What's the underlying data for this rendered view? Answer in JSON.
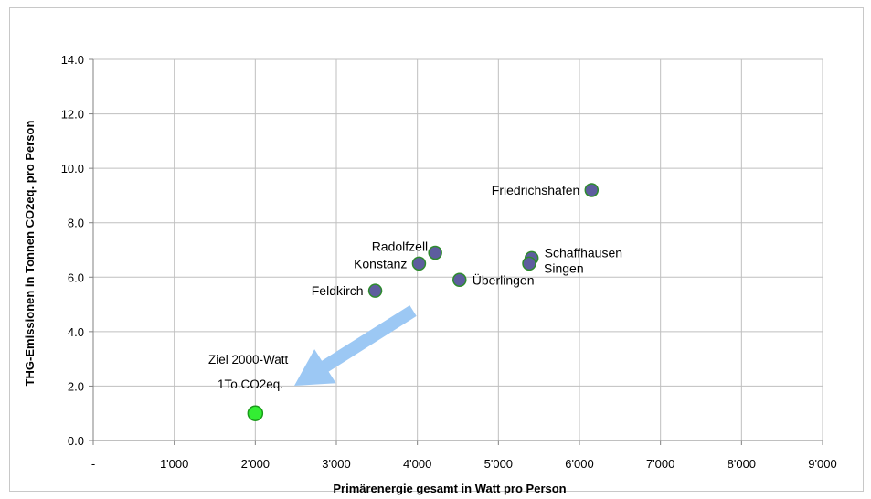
{
  "chart_data": {
    "type": "scatter",
    "title": "",
    "xlabel": "Primärenergie gesamt in Watt pro Person",
    "ylabel": "THG-Emissionen in Tonnen CO2eq. pro Person",
    "xlim": [
      0,
      9000
    ],
    "ylim": [
      0,
      14
    ],
    "x_ticks": [
      0,
      1000,
      2000,
      3000,
      4000,
      5000,
      6000,
      7000,
      8000,
      9000
    ],
    "x_tick_labels": [
      "-",
      "1'000",
      "2'000",
      "3'000",
      "4'000",
      "5'000",
      "6'000",
      "7'000",
      "8'000",
      "9'000"
    ],
    "y_ticks": [
      0,
      2,
      4,
      6,
      8,
      10,
      12,
      14
    ],
    "y_tick_labels": [
      "0.0",
      "2.0",
      "4.0",
      "6.0",
      "8.0",
      "10.0",
      "12.0",
      "14.0"
    ],
    "grid": true,
    "legend": "none",
    "points": [
      {
        "name": "Friedrichshafen",
        "x": 6150,
        "y": 9.2,
        "label_pos": "left"
      },
      {
        "name": "Radolfzell",
        "x": 4220,
        "y": 6.9,
        "label_pos": "left-up"
      },
      {
        "name": "Konstanz",
        "x": 4020,
        "y": 6.5,
        "label_pos": "left"
      },
      {
        "name": "Schaffhausen",
        "x": 5410,
        "y": 6.7,
        "label_pos": "right-up"
      },
      {
        "name": "Singen",
        "x": 5380,
        "y": 6.5,
        "label_pos": "right-down"
      },
      {
        "name": "Überlingen",
        "x": 4520,
        "y": 5.9,
        "label_pos": "right"
      },
      {
        "name": "Feldkirch",
        "x": 3480,
        "y": 5.5,
        "label_pos": "left"
      }
    ],
    "target_point": {
      "x": 2000,
      "y": 1.0
    },
    "annotation": {
      "line1": "Ziel 2000-Watt",
      "line2": "1To.CO2eq."
    },
    "colors": {
      "point_fill": "#5d5d9e",
      "point_stroke": "#2e8b2e",
      "target_fill": "#33ee33",
      "target_stroke": "#1a9a1a",
      "arrow": "#9cc8f4",
      "grid": "#bfbfbf"
    }
  }
}
